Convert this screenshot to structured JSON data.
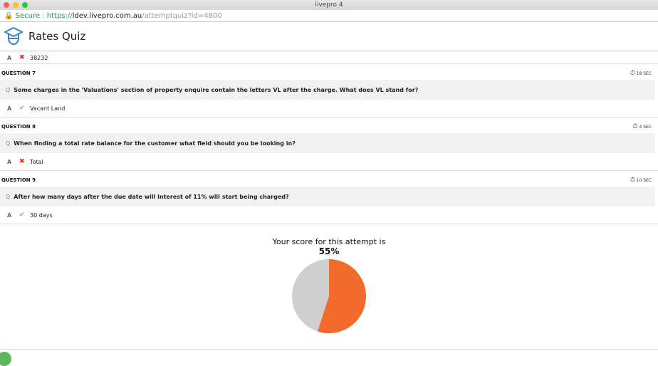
{
  "window": {
    "title": "livepro 4"
  },
  "address": {
    "secure": "Secure",
    "scheme": "https://",
    "host": "ldev.livepro.com.au",
    "path": "/attemptquiz?id=4800"
  },
  "header": {
    "title": "Rates Quiz"
  },
  "previous_answer": {
    "label": "A",
    "text": "38232",
    "correct": false
  },
  "questions": [
    {
      "title": "QUESTION 7",
      "time": "18 SEC",
      "q_label": "Q",
      "question": "Some charges in the 'Valuations' section of property enquire contain the letters VL after the charge. What does VL stand for?",
      "a_label": "A",
      "answer": "Vacant Land",
      "correct": true
    },
    {
      "title": "QUESTION 8",
      "time": "4 SEC",
      "q_label": "Q",
      "question": "When finding a total rate balance for the customer what field should you be looking in?",
      "a_label": "A",
      "answer": "Total",
      "correct": false
    },
    {
      "title": "QUESTION 9",
      "time": "10 SEC",
      "q_label": "Q",
      "question": "After how many days after the due date will interest of 11% will start being charged?",
      "a_label": "A",
      "answer": "30 days",
      "correct": true
    }
  ],
  "score": {
    "label": "Your score for this attempt is",
    "value": "55%",
    "fraction": 0.55,
    "colors": {
      "score": "#f26b2a",
      "rest": "#cfcfcf"
    }
  }
}
